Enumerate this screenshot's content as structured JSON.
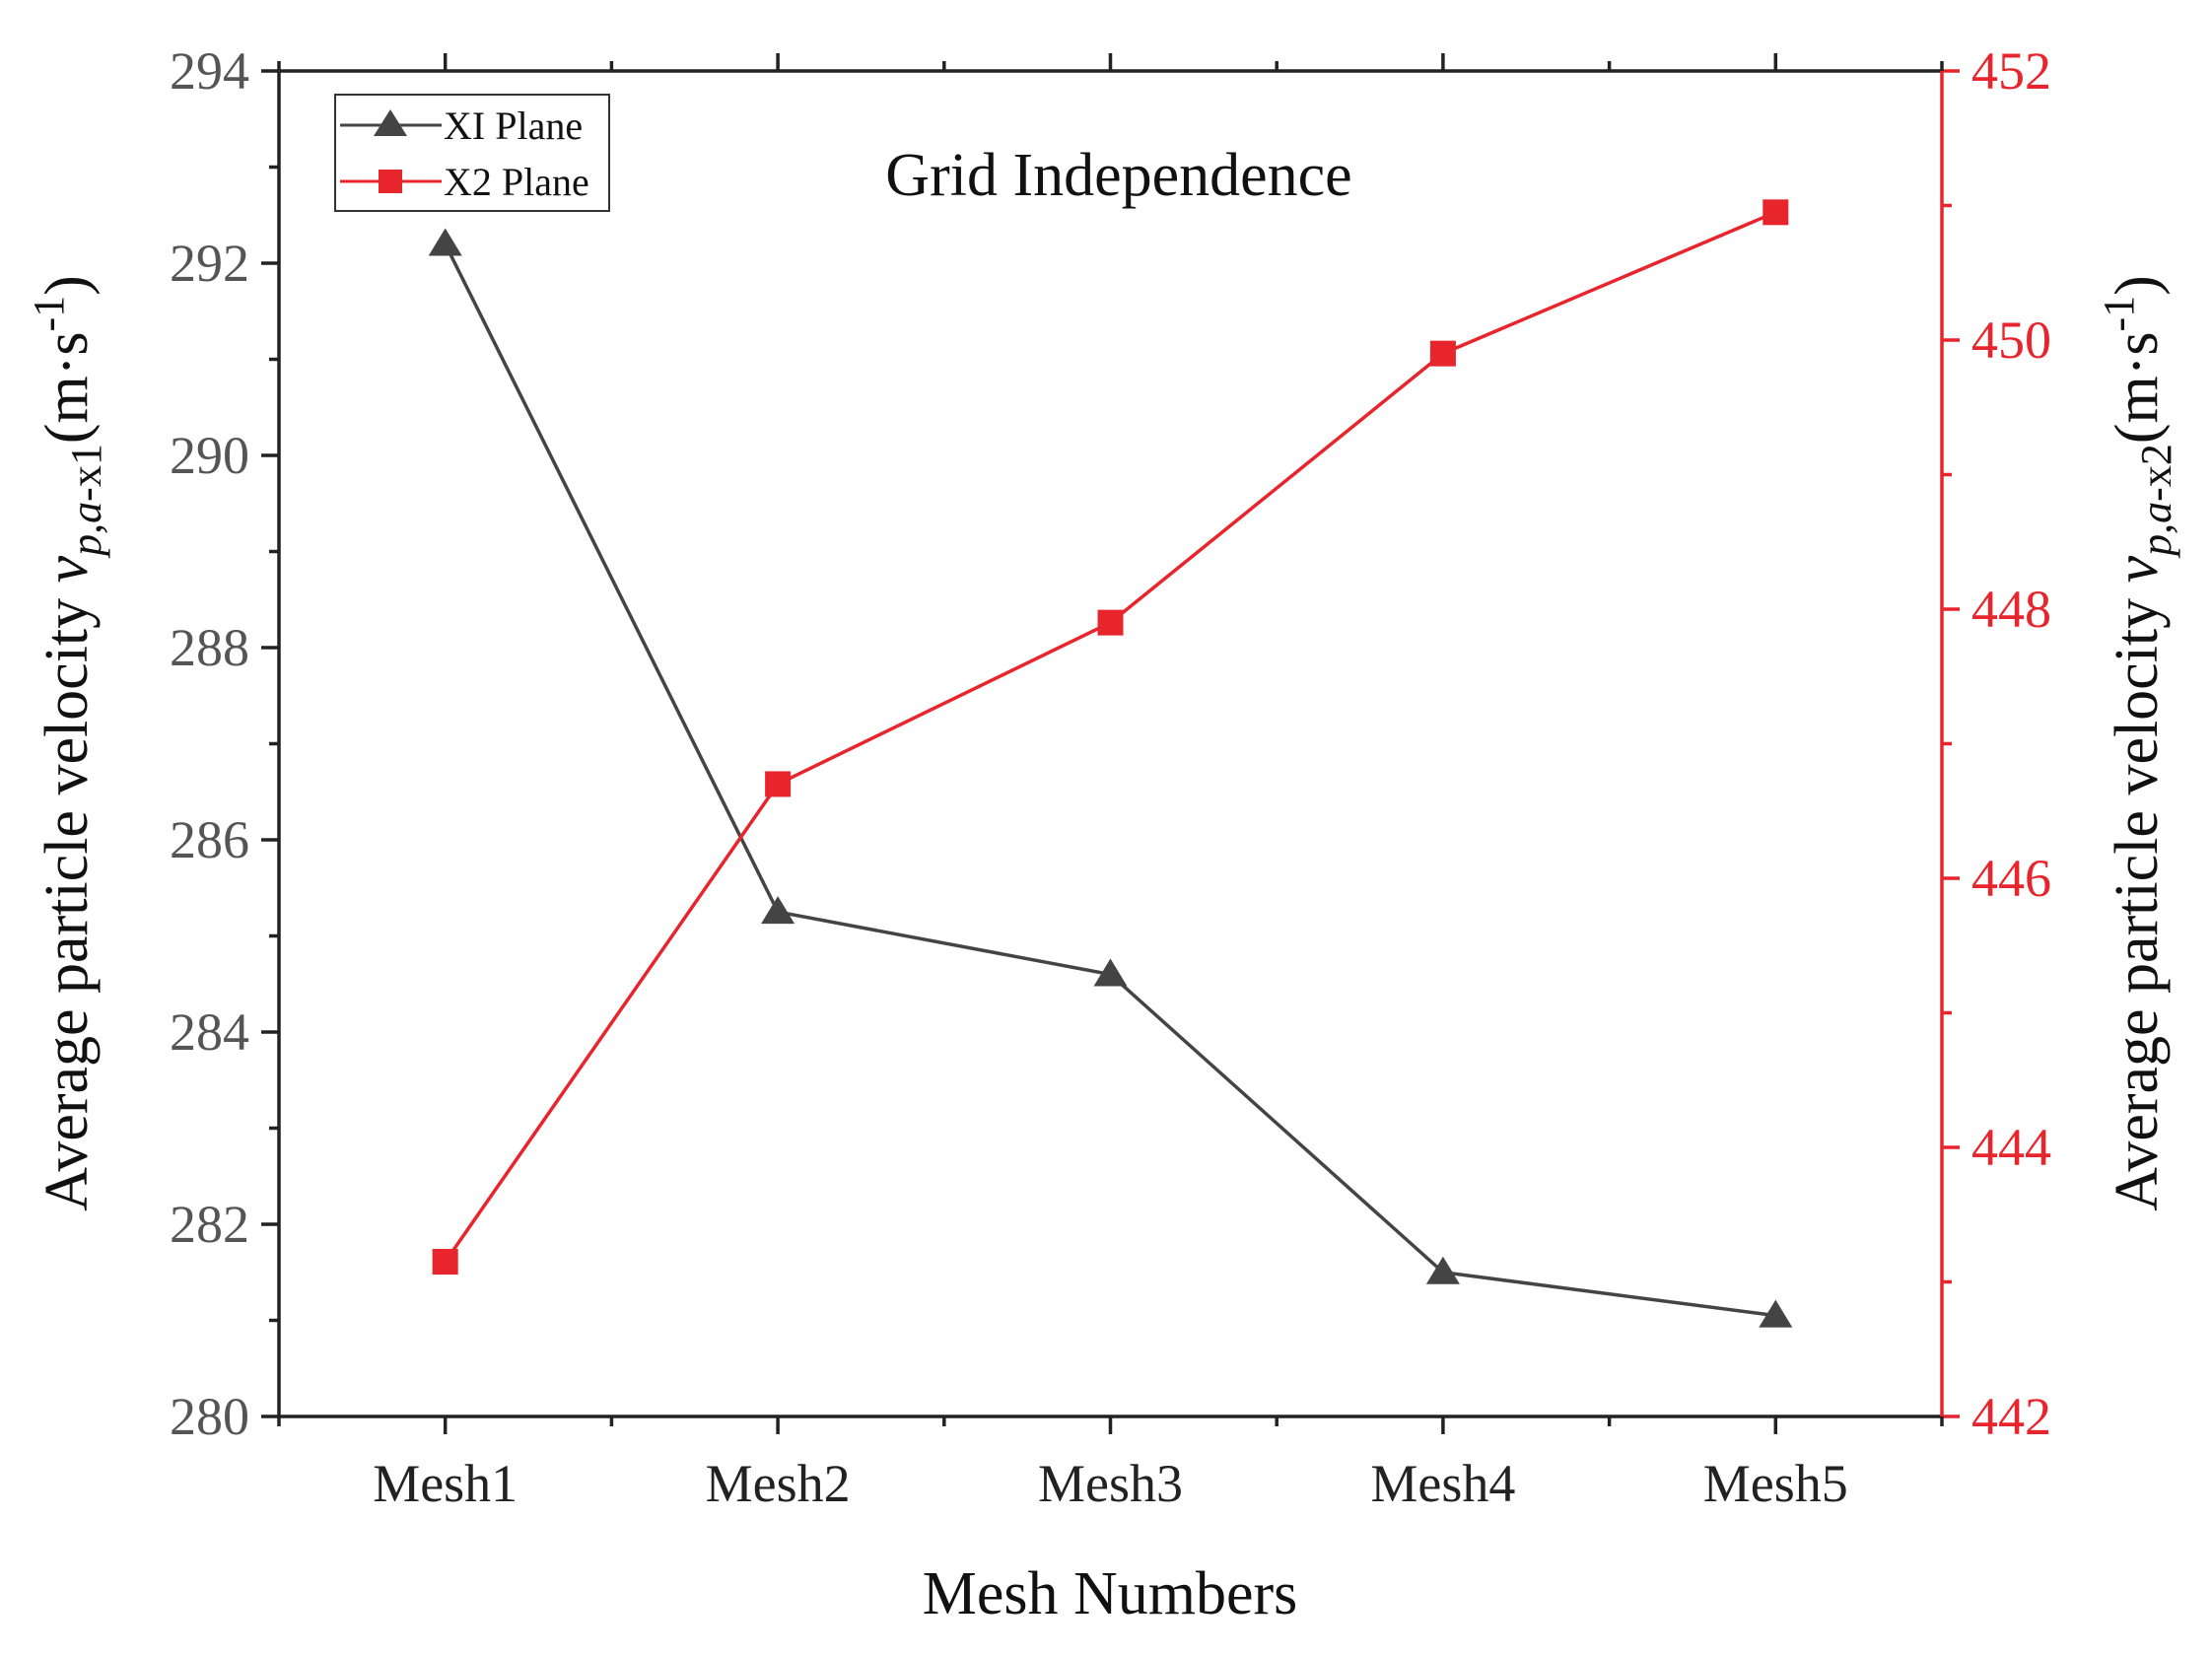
{
  "chart_data": {
    "type": "line",
    "title": "Grid Independence",
    "xlabel": "Mesh Numbers",
    "categories": [
      "Mesh1",
      "Mesh2",
      "Mesh3",
      "Mesh4",
      "Mesh5"
    ],
    "y_left": {
      "label_prefix": "Average particle velocity ",
      "label_var": "v",
      "label_sub_italic": "p,a",
      "label_sub_plain": "-x1",
      "label_unit_open": "(m·s",
      "label_unit_exp": "-1",
      "label_unit_close": ")",
      "ylim": [
        280,
        294
      ],
      "ticks": [
        280,
        282,
        284,
        286,
        288,
        290,
        292,
        294
      ],
      "color": "#555555"
    },
    "y_right": {
      "label_prefix": "Average particle velocity ",
      "label_var": "v",
      "label_sub_italic": "p,a",
      "label_sub_plain": "-x2",
      "label_unit_open": "(m·s",
      "label_unit_exp": "-1",
      "label_unit_close": ")",
      "ylim": [
        442,
        452
      ],
      "ticks": [
        442,
        444,
        446,
        448,
        450,
        452
      ],
      "color": "#e8242c"
    },
    "series": [
      {
        "name": "XI Plane",
        "axis": "left",
        "marker": "triangle",
        "color": "#444444",
        "values": [
          292.2,
          285.25,
          284.6,
          281.5,
          281.05
        ]
      },
      {
        "name": "X2 Plane",
        "axis": "right",
        "marker": "square",
        "color": "#e8242c",
        "values": [
          443.15,
          446.7,
          447.9,
          449.9,
          450.95
        ]
      }
    ],
    "legend_position": "top-left",
    "grid": false
  }
}
